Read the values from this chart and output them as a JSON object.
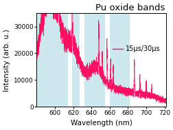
{
  "title": "Pu oxide bands",
  "xlabel": "Wavelength (nm)",
  "ylabel": "Intensity (arb. u.)",
  "legend_label": "15μs/30μs",
  "xlim": [
    580,
    722
  ],
  "ylim": [
    0,
    35000
  ],
  "yticks": [
    0,
    10000,
    20000,
    30000
  ],
  "line_color": "#FF1060",
  "background_color": "#ffffff",
  "shaded_bands": [
    [
      580,
      614
    ],
    [
      619,
      627
    ],
    [
      632,
      655
    ],
    [
      660,
      682
    ]
  ],
  "band_color": "#cde8ee",
  "seed": 42,
  "title_fontsize": 9.5,
  "label_fontsize": 7.5,
  "tick_fontsize": 6.5
}
